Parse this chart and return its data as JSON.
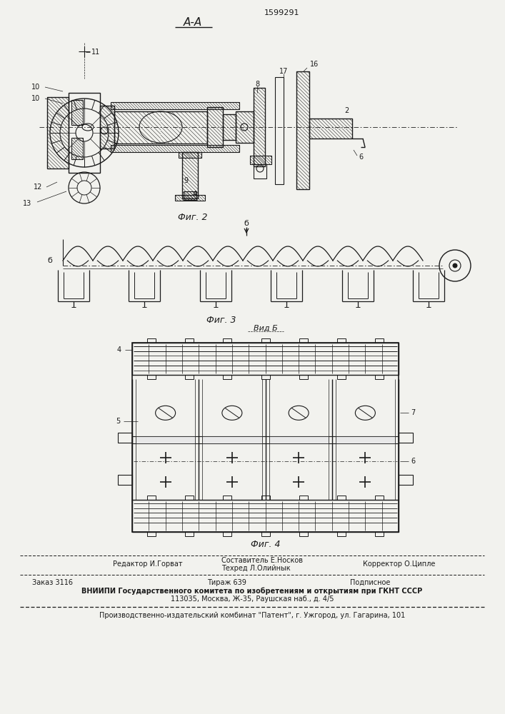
{
  "patent_number": "1599291",
  "view_label_top": "A-A",
  "fig2_label": "Фиг. 2",
  "fig3_label": "Фиг. 3",
  "fig4_label": "Фиг. 4",
  "fig3_arrow_label": "б",
  "fig3_side_label": "б",
  "fig4_title": "Вид Б",
  "footer_editor": "Редактор И.Горват",
  "footer_composer": "Составитель Е.Носков",
  "footer_techred": "Техред Л.Олийнык",
  "footer_corrector": "Корректор О.Ципле",
  "footer_order": "Заказ 3116",
  "footer_print": "Тираж 639",
  "footer_signed": "Подписное",
  "footer_vnipi": "ВНИИПИ Государственного комитета по изобретениям и открытиям при ГКНТ СССР",
  "footer_address": "113035, Москва, Ж-35, Раушская наб., д. 4/5",
  "footer_plant": "Производственно-издательский комбинат \"Патент\", г. Ужгород, ул. Гагарина, 101",
  "bg_color": "#f2f2ee",
  "lc": "#1a1a1a"
}
